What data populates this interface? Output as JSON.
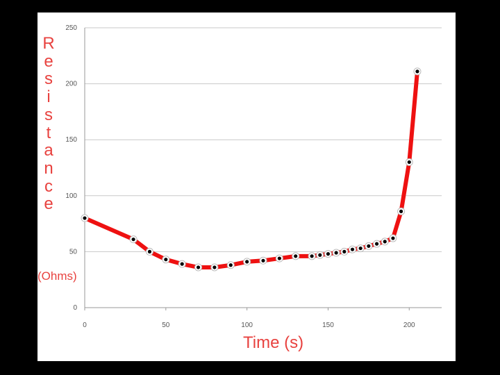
{
  "chart_data": {
    "type": "line",
    "title": "",
    "xlabel": "Time (s)",
    "ylabel": "Resistance",
    "ylabel_unit": "(Ohms)",
    "xlim": [
      0,
      220
    ],
    "ylim": [
      0,
      250
    ],
    "x_ticks": [
      "0",
      "50",
      "100",
      "150",
      "200"
    ],
    "y_ticks": [
      "0",
      "50",
      "100",
      "150",
      "200",
      "250"
    ],
    "grid": "horizontal",
    "series": [
      {
        "line_color": "#ee1111",
        "marker_color": "#000000",
        "points": [
          [
            0,
            80
          ],
          [
            30,
            61
          ],
          [
            40,
            50
          ],
          [
            50,
            43
          ],
          [
            60,
            39
          ],
          [
            70,
            36
          ],
          [
            80,
            36
          ],
          [
            90,
            38
          ],
          [
            100,
            41
          ],
          [
            110,
            42
          ],
          [
            120,
            44
          ],
          [
            130,
            46
          ],
          [
            140,
            46
          ],
          [
            145,
            47
          ],
          [
            150,
            48
          ],
          [
            155,
            49
          ],
          [
            160,
            50
          ],
          [
            165,
            52
          ],
          [
            170,
            53
          ],
          [
            175,
            55
          ],
          [
            180,
            57
          ],
          [
            185,
            59
          ],
          [
            190,
            62
          ],
          [
            195,
            86
          ],
          [
            200,
            130
          ],
          [
            205,
            211
          ]
        ]
      }
    ]
  }
}
